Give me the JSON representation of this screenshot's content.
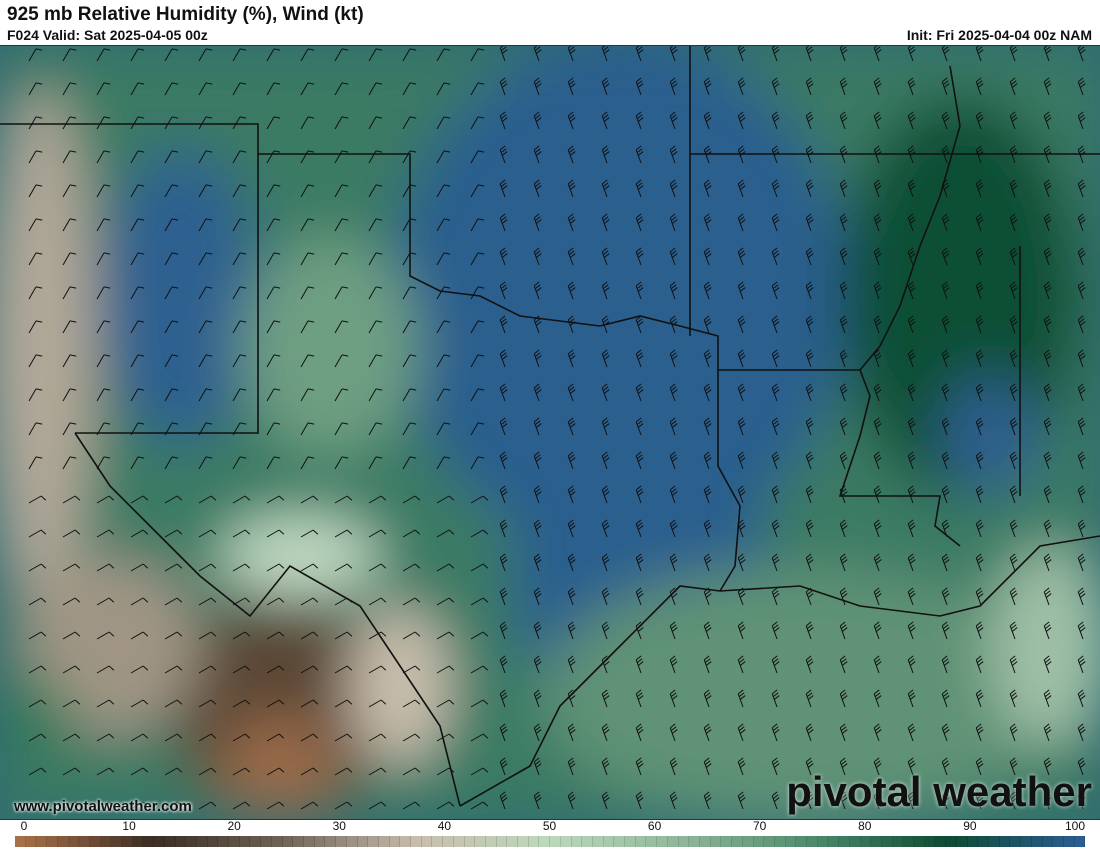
{
  "header": {
    "title": "925 mb Relative Humidity (%), Wind (kt)",
    "valid": "F024 Valid: Sat 2025-04-05 00z",
    "init": "Init: Fri 2025-04-04 00z NAM"
  },
  "map": {
    "field": "relative humidity",
    "overlay": "wind barbs",
    "region": "Southern Plains / Gulf Coast"
  },
  "watermark": {
    "site": "www.pivotalweather.com",
    "logo": "pivotal weather"
  },
  "colorbar": {
    "ticks": [
      "0",
      "10",
      "20",
      "30",
      "40",
      "50",
      "60",
      "70",
      "80",
      "90",
      "100"
    ],
    "stops": [
      "#a87048",
      "#3a2d24",
      "#6e6558",
      "#c9bdad",
      "#bcd8bc",
      "#8fb69a",
      "#4d8a6c",
      "#0f4a32",
      "#2b5d92"
    ]
  }
}
